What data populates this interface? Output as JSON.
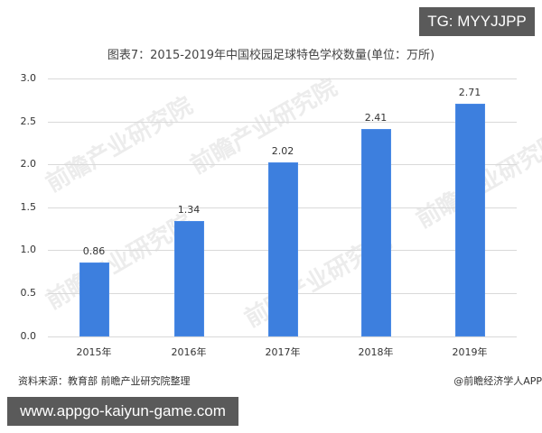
{
  "badges": {
    "top_right": "TG: MYYJJPP",
    "bottom_left": "www.appgo-kaiyun-game.com"
  },
  "watermark_text": "前瞻产业研究院",
  "footer": {
    "source": "资料来源：教育部 前瞻产业研究院整理",
    "credit": "@前瞻经济学人APP"
  },
  "colors": {
    "bar": "#3d7fde",
    "badge_bg": "#5a5a5a",
    "gridline": "#d9d9d9"
  },
  "chart_data": {
    "type": "bar",
    "title": "图表7：2015-2019年中国校园足球特色学校数量(单位：万所)",
    "xlabel": "",
    "ylabel": "",
    "categories": [
      "2015年",
      "2016年",
      "2017年",
      "2018年",
      "2019年"
    ],
    "values": [
      0.86,
      1.34,
      2.02,
      2.41,
      2.71
    ],
    "value_labels": [
      "0.86",
      "1.34",
      "2.02",
      "2.41",
      "2.71"
    ],
    "unit": "万所",
    "ylim": [
      0,
      3.0
    ],
    "yticks": [
      "0.0",
      "0.5",
      "1.0",
      "1.5",
      "2.0",
      "2.5",
      "3.0"
    ],
    "grid": true,
    "legend": null
  }
}
